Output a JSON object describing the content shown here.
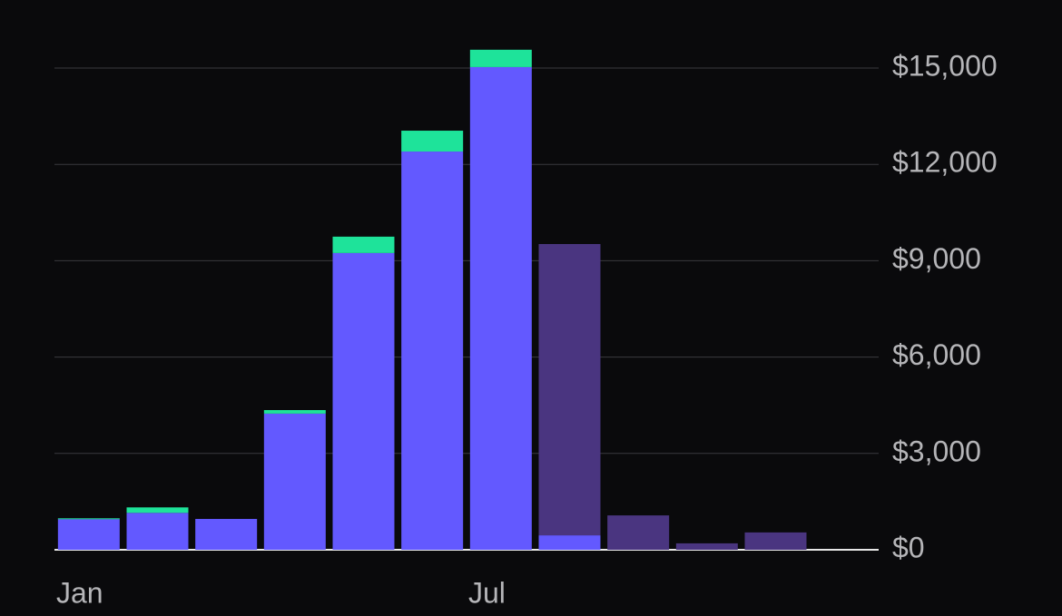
{
  "chart_data": {
    "type": "bar",
    "stacked": true,
    "categories": [
      "Jan",
      null,
      null,
      null,
      null,
      null,
      "Jul",
      null,
      null,
      null,
      null,
      null
    ],
    "series": [
      {
        "color": "#6359ff",
        "values": [
          950,
          1150,
          960,
          4240,
          9240,
          12400,
          15030,
          450,
          null,
          null,
          null,
          null
        ]
      },
      {
        "color": "#1ee39a",
        "values": [
          30,
          170,
          null,
          110,
          510,
          650,
          540,
          null,
          null,
          null,
          null,
          null
        ]
      },
      {
        "color": "#4a3580",
        "values": [
          null,
          null,
          null,
          null,
          null,
          null,
          null,
          9070,
          1070,
          200,
          540,
          null
        ]
      }
    ],
    "ylim": [
      0,
      15000
    ],
    "yticks": [
      {
        "value": 0,
        "label": "$0"
      },
      {
        "value": 3000,
        "label": "$3,000"
      },
      {
        "value": 6000,
        "label": "$6,000"
      },
      {
        "value": 9000,
        "label": "$9,000"
      },
      {
        "value": 12000,
        "label": "$12,000"
      },
      {
        "value": 15000,
        "label": "$15,000"
      }
    ],
    "grid": true
  }
}
